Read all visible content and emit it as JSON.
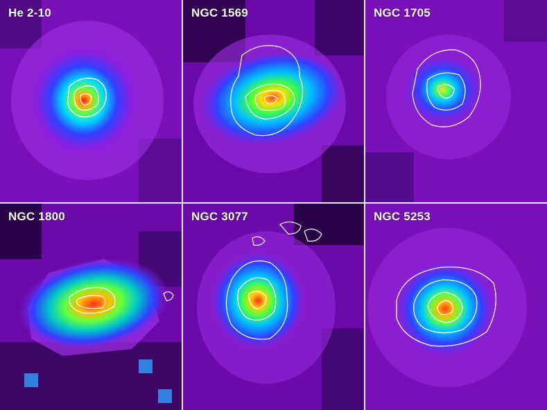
{
  "panels": [
    {
      "label": "He 2-10"
    },
    {
      "label": "NGC 1569"
    },
    {
      "label": "NGC 1705"
    },
    {
      "label": "NGC 1800"
    },
    {
      "label": "NGC 3077"
    },
    {
      "label": "NGC 5253"
    }
  ],
  "colors": {
    "background": "#7a10b8",
    "divider": "#e8e8e8",
    "label": "#ffffff",
    "contour": "#ffffff",
    "colormap": [
      "#000000",
      "#6a0aa8",
      "#b23cf0",
      "#3a50ff",
      "#00e0ff",
      "#30ff40",
      "#ffff20",
      "#ff8000",
      "#ff2020",
      "#ffffff"
    ]
  }
}
